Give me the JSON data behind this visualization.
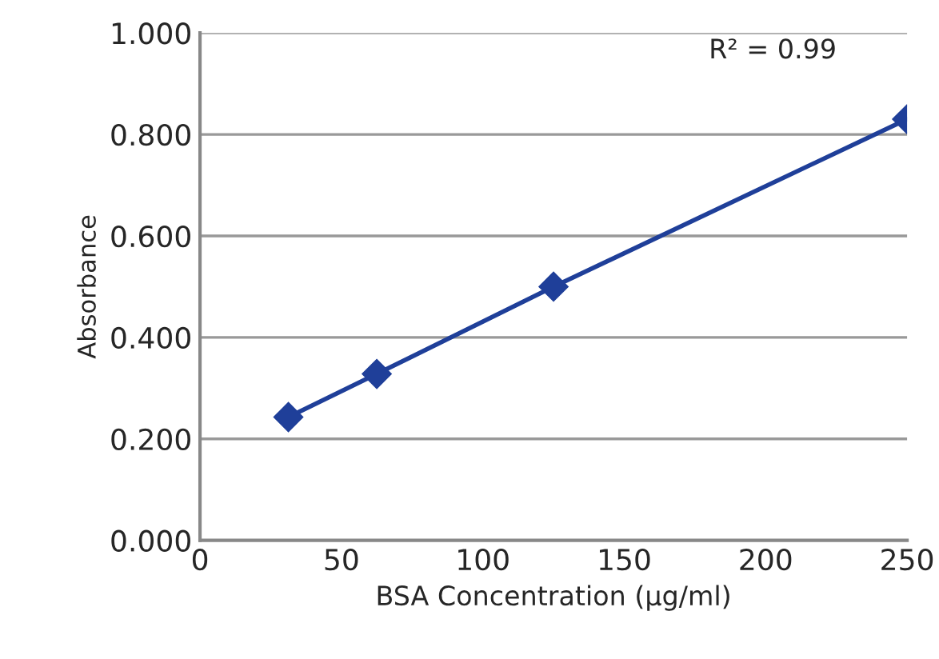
{
  "chart_data": {
    "type": "line",
    "xlabel": "BSA Concentration (μg/ml)",
    "ylabel": "Absorbance",
    "x": [
      31.25,
      62.5,
      125,
      250
    ],
    "series": [
      {
        "color": "#1f3f99",
        "values": [
          0.243,
          0.328,
          0.5,
          0.83
        ]
      }
    ],
    "xlim": [
      0,
      250
    ],
    "xticks": [
      0,
      50,
      100,
      150,
      200,
      250
    ],
    "ylim": [
      0,
      1.0
    ],
    "yticks": [
      {
        "value": 0,
        "label": "0.000"
      },
      {
        "value": 0.2,
        "label": "0.200"
      },
      {
        "value": 0.4,
        "label": "0.400"
      },
      {
        "value": 0.6,
        "label": "0.600"
      },
      {
        "value": 0.8,
        "label": "0.800"
      },
      {
        "value": 1.0,
        "label": "1.000"
      }
    ],
    "grid": "y",
    "marker": "diamond",
    "line_style": "solid",
    "legend": false,
    "annotations": [
      "R² = 0.99"
    ]
  }
}
